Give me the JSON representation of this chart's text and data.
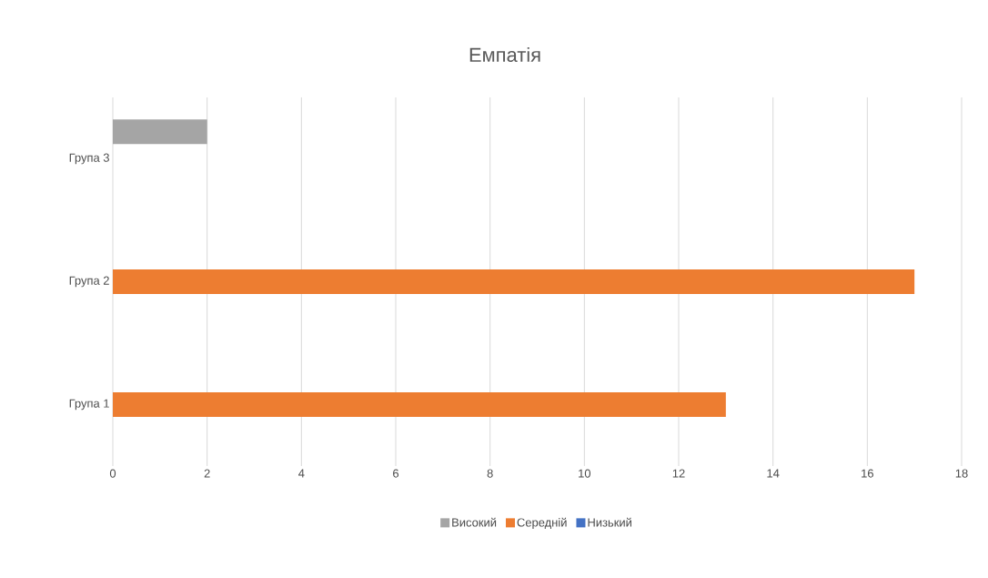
{
  "chart_data": {
    "type": "bar",
    "orientation": "horizontal",
    "title": "Емпатія",
    "categories": [
      "Група 3",
      "Група 2",
      "Група 1"
    ],
    "series": [
      {
        "name": "Низький",
        "color": "#4472c4",
        "values": [
          0,
          0,
          0
        ]
      },
      {
        "name": "Середній",
        "color": "#ed7d31",
        "values": [
          0,
          17,
          13
        ]
      },
      {
        "name": "Високий",
        "color": "#a5a5a5",
        "values": [
          2,
          0,
          0
        ]
      }
    ],
    "xlim": [
      0,
      18
    ],
    "xticks": [
      0,
      2,
      4,
      6,
      8,
      10,
      12,
      14,
      16,
      18
    ],
    "grid": "x",
    "legend": "bottom"
  }
}
